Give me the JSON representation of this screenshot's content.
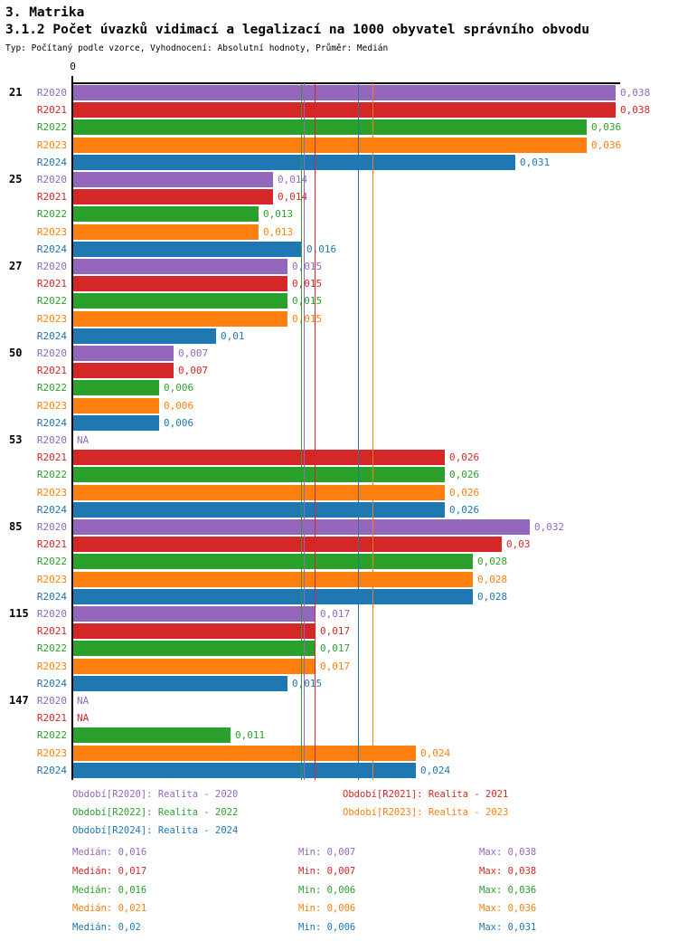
{
  "header": {
    "section": "3. Matrika",
    "title": "3.1.2 Počet úvazků vidimací a legalizací na 1000 obyvatel správního obvodu",
    "subtitle": "Typ: Počítaný podle vzorce, Vyhodnocení: Absolutní hodnoty, Průměr: Medián"
  },
  "chart_data": {
    "type": "bar",
    "orientation": "horizontal",
    "x_axis": {
      "origin_label": "0",
      "x_max": 0.038,
      "grid": false
    },
    "series": [
      "R2020",
      "R2021",
      "R2022",
      "R2023",
      "R2024"
    ],
    "series_colors": {
      "R2020": "#9467bd",
      "R2021": "#d62728",
      "R2022": "#2ca02c",
      "R2023": "#ff7f0e",
      "R2024": "#1f77b4"
    },
    "na_label": "NA",
    "categories": [
      "21",
      "25",
      "27",
      "50",
      "53",
      "85",
      "115",
      "147"
    ],
    "groups": [
      {
        "category": "21",
        "bars": [
          {
            "series": "R2020",
            "value": 0.038,
            "label": "0,038"
          },
          {
            "series": "R2021",
            "value": 0.038,
            "label": "0,038"
          },
          {
            "series": "R2022",
            "value": 0.036,
            "label": "0,036"
          },
          {
            "series": "R2023",
            "value": 0.036,
            "label": "0,036"
          },
          {
            "series": "R2024",
            "value": 0.031,
            "label": "0,031"
          }
        ]
      },
      {
        "category": "25",
        "bars": [
          {
            "series": "R2020",
            "value": 0.014,
            "label": "0,014"
          },
          {
            "series": "R2021",
            "value": 0.014,
            "label": "0,014"
          },
          {
            "series": "R2022",
            "value": 0.013,
            "label": "0,013"
          },
          {
            "series": "R2023",
            "value": 0.013,
            "label": "0,013"
          },
          {
            "series": "R2024",
            "value": 0.016,
            "label": "0,016"
          }
        ]
      },
      {
        "category": "27",
        "bars": [
          {
            "series": "R2020",
            "value": 0.015,
            "label": "0,015"
          },
          {
            "series": "R2021",
            "value": 0.015,
            "label": "0,015"
          },
          {
            "series": "R2022",
            "value": 0.015,
            "label": "0,015"
          },
          {
            "series": "R2023",
            "value": 0.015,
            "label": "0,015"
          },
          {
            "series": "R2024",
            "value": 0.01,
            "label": "0,01"
          }
        ]
      },
      {
        "category": "50",
        "bars": [
          {
            "series": "R2020",
            "value": 0.007,
            "label": "0,007"
          },
          {
            "series": "R2021",
            "value": 0.007,
            "label": "0,007"
          },
          {
            "series": "R2022",
            "value": 0.006,
            "label": "0,006"
          },
          {
            "series": "R2023",
            "value": 0.006,
            "label": "0,006"
          },
          {
            "series": "R2024",
            "value": 0.006,
            "label": "0,006"
          }
        ]
      },
      {
        "category": "53",
        "bars": [
          {
            "series": "R2020",
            "value": null,
            "label": "NA"
          },
          {
            "series": "R2021",
            "value": 0.026,
            "label": "0,026"
          },
          {
            "series": "R2022",
            "value": 0.026,
            "label": "0,026"
          },
          {
            "series": "R2023",
            "value": 0.026,
            "label": "0,026"
          },
          {
            "series": "R2024",
            "value": 0.026,
            "label": "0,026"
          }
        ]
      },
      {
        "category": "85",
        "bars": [
          {
            "series": "R2020",
            "value": 0.032,
            "label": "0,032"
          },
          {
            "series": "R2021",
            "value": 0.03,
            "label": "0,03"
          },
          {
            "series": "R2022",
            "value": 0.028,
            "label": "0,028"
          },
          {
            "series": "R2023",
            "value": 0.028,
            "label": "0,028"
          },
          {
            "series": "R2024",
            "value": 0.028,
            "label": "0,028"
          }
        ]
      },
      {
        "category": "115",
        "bars": [
          {
            "series": "R2020",
            "value": 0.017,
            "label": "0,017"
          },
          {
            "series": "R2021",
            "value": 0.017,
            "label": "0,017"
          },
          {
            "series": "R2022",
            "value": 0.017,
            "label": "0,017"
          },
          {
            "series": "R2023",
            "value": 0.017,
            "label": "0,017"
          },
          {
            "series": "R2024",
            "value": 0.015,
            "label": "0,015"
          }
        ]
      },
      {
        "category": "147",
        "bars": [
          {
            "series": "R2020",
            "value": null,
            "label": "NA"
          },
          {
            "series": "R2021",
            "value": null,
            "label": "NA"
          },
          {
            "series": "R2022",
            "value": 0.011,
            "label": "0,011"
          },
          {
            "series": "R2023",
            "value": 0.024,
            "label": "0,024"
          },
          {
            "series": "R2024",
            "value": 0.024,
            "label": "0,024"
          }
        ]
      }
    ],
    "median_lines": [
      {
        "series": "R2022",
        "value": 0.016
      },
      {
        "series": "R2020",
        "value": 0.016
      },
      {
        "series": "R2021",
        "value": 0.017
      },
      {
        "series": "R2024",
        "value": 0.02
      },
      {
        "series": "R2023",
        "value": 0.021
      }
    ]
  },
  "legend": {
    "items": [
      {
        "series": "R2020",
        "label": "Období[R2020]: Realita - 2020"
      },
      {
        "series": "R2021",
        "label": "Období[R2021]: Realita - 2021"
      },
      {
        "series": "R2022",
        "label": "Období[R2022]: Realita - 2022"
      },
      {
        "series": "R2023",
        "label": "Období[R2023]: Realita - 2023"
      },
      {
        "series": "R2024",
        "label": "Období[R2024]: Realita - 2024"
      }
    ]
  },
  "stats": {
    "labels": {
      "median": "Medián",
      "min": "Min",
      "max": "Max"
    },
    "rows": [
      {
        "series": "R2020",
        "median": "0,016",
        "min": "0,007",
        "max": "0,038"
      },
      {
        "series": "R2021",
        "median": "0,017",
        "min": "0,007",
        "max": "0,038"
      },
      {
        "series": "R2022",
        "median": "0,016",
        "min": "0,006",
        "max": "0,036"
      },
      {
        "series": "R2023",
        "median": "0,021",
        "min": "0,006",
        "max": "0,036"
      },
      {
        "series": "R2024",
        "median": "0,02",
        "min": "0,006",
        "max": "0,031"
      }
    ]
  }
}
